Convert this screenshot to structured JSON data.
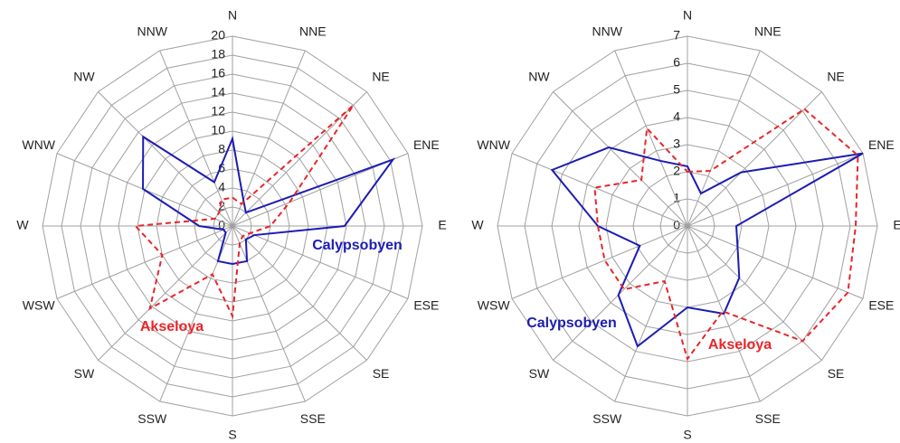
{
  "chart_data": [
    {
      "type": "radar",
      "categories": [
        "N",
        "NNE",
        "NE",
        "ENE",
        "E",
        "ESE",
        "SE",
        "SSE",
        "S",
        "SSW",
        "SW",
        "WSW",
        "W",
        "WNW",
        "NW",
        "NNW"
      ],
      "rlim": [
        0,
        20
      ],
      "rticks": [
        0,
        2,
        4,
        6,
        8,
        10,
        12,
        14,
        16,
        18,
        20
      ],
      "grid": true,
      "series": [
        {
          "name": "Calypsobyen",
          "color": "#1c1cb4",
          "dashed": false,
          "values": [
            9.2,
            3,
            2,
            18.3,
            11.8,
            2.5,
            2,
            4,
            4,
            4,
            1,
            1,
            3.5,
            10.2,
            13.3,
            5
          ]
        },
        {
          "name": "Akseloya",
          "color": "#e8262a",
          "dashed": true,
          "values": [
            3,
            2.5,
            18,
            6.5,
            4,
            2,
            1.5,
            2,
            9.5,
            5.5,
            12.3,
            8,
            10.2,
            2,
            2,
            3
          ]
        }
      ]
    },
    {
      "type": "radar",
      "categories": [
        "N",
        "NNE",
        "NE",
        "ENE",
        "E",
        "ESE",
        "SE",
        "SSE",
        "S",
        "SSW",
        "SW",
        "WSW",
        "W",
        "WNW",
        "NW",
        "NNW"
      ],
      "rlim": [
        0,
        7
      ],
      "rticks": [
        0,
        1,
        2,
        3,
        4,
        5,
        6,
        7
      ],
      "grid": true,
      "series": [
        {
          "name": "Calypsobyen",
          "color": "#1c1cb4",
          "dashed": false,
          "values": [
            2.2,
            1.3,
            2.8,
            7,
            1.8,
            2,
            2.7,
            3.5,
            3,
            4.8,
            3.6,
            1.9,
            3.3,
            5.4,
            4.1,
            2.6
          ]
        },
        {
          "name": "Akseloya",
          "color": "#e8262a",
          "dashed": true,
          "values": [
            2,
            2.2,
            6.1,
            6.8,
            6.2,
            6.4,
            6,
            3.4,
            4.9,
            2.2,
            3.3,
            3.3,
            3.3,
            3.7,
            2.4,
            3.9
          ]
        }
      ]
    }
  ]
}
